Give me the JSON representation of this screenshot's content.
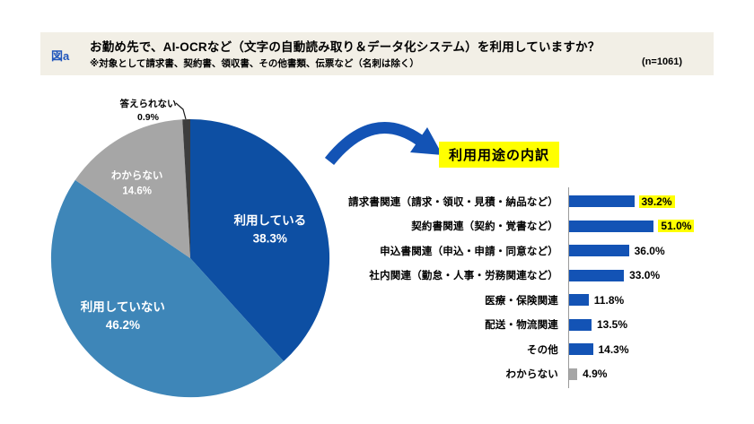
{
  "figure_label": "図a",
  "header": {
    "question": "お勤め先で、AI-OCRなど（文字の自動読み取り＆データ化システム）を利用していますか？",
    "note": "※対象として請求書、契約書、領収書、その他書類、伝票など（名刺は除く）",
    "sample_size": "(n=1061)"
  },
  "colors": {
    "header_bg": "#f2efe6",
    "figure_label_blue": "#1f55bb",
    "pie_dark_blue": "#0d4fa3",
    "pie_steel_blue": "#3e86b8",
    "pie_gray": "#a6a6a6",
    "pie_dark_gray": "#3d3d3d",
    "bar_blue": "#1353b5",
    "bar_gray": "#a6a6a6",
    "highlight_yellow": "#ffff00",
    "axis_gray": "#9a9a9a",
    "callout_line": "#1a1a1a"
  },
  "chart_data": [
    {
      "type": "pie",
      "title": "AI-OCR利用状況",
      "labels": [
        "利用している",
        "利用していない",
        "わからない",
        "答えられない"
      ],
      "values": [
        38.3,
        46.2,
        14.6,
        0.9
      ],
      "value_labels": [
        "38.3%",
        "46.2%",
        "14.6%",
        "0.9%"
      ],
      "colors": [
        "#0d4fa3",
        "#3e86b8",
        "#a6a6a6",
        "#3d3d3d"
      ],
      "start_angle_deg": 0,
      "direction": "clockwise",
      "label_layout": [
        "inside",
        "inside",
        "inside",
        "callout-top"
      ],
      "legend": "none"
    },
    {
      "type": "bar",
      "orientation": "horizontal",
      "title": "利用用途の内訳",
      "categories": [
        "請求書関連（請求・領収・見積・納品など）",
        "契約書関連（契約・覚書など）",
        "申込書関連（申込・申請・同意など）",
        "社内関連（勤怠・人事・労務関連など）",
        "医療・保険関連",
        "配送・物流関連",
        "その他",
        "わからない"
      ],
      "values": [
        39.2,
        51.0,
        36.0,
        33.0,
        11.8,
        13.5,
        14.3,
        4.9
      ],
      "value_labels": [
        "39.2%",
        "51.0%",
        "36.0%",
        "33.0%",
        "11.8%",
        "13.5%",
        "14.3%",
        "4.9%"
      ],
      "highlighted": [
        true,
        true,
        false,
        false,
        false,
        false,
        false,
        false
      ],
      "bar_colors": [
        "#1353b5",
        "#1353b5",
        "#1353b5",
        "#1353b5",
        "#1353b5",
        "#1353b5",
        "#1353b5",
        "#a6a6a6"
      ],
      "xlim": [
        0,
        55
      ],
      "value_label_position": "outside-right",
      "grid": "off"
    }
  ]
}
